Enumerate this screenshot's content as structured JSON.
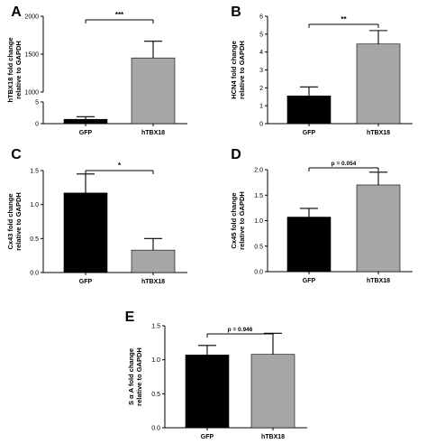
{
  "chart_data": [
    {
      "id": "A",
      "type": "bar",
      "panel_label": "A",
      "ylabel": [
        "hTBX18 fold change",
        "relative to GAPDH"
      ],
      "categories": [
        "GFP",
        "hTBX18"
      ],
      "values": [
        1,
        1450
      ],
      "errors": [
        0.6,
        220
      ],
      "bar_colors": [
        "#000000",
        "#a6a6a6"
      ],
      "axis_break": true,
      "lower_segment": {
        "ylim": [
          0,
          5
        ],
        "ticks": [
          "0",
          "5"
        ]
      },
      "upper_segment": {
        "ylim": [
          1000,
          2000
        ],
        "ticks": [
          "1000",
          "1500",
          "2000"
        ]
      },
      "significance": "***"
    },
    {
      "id": "B",
      "type": "bar",
      "panel_label": "B",
      "ylabel": [
        "HCN4 fold change",
        "relative to GAPDH"
      ],
      "categories": [
        "GFP",
        "hTBX18"
      ],
      "values": [
        1.55,
        4.45
      ],
      "errors": [
        0.5,
        0.75
      ],
      "bar_colors": [
        "#000000",
        "#a6a6a6"
      ],
      "ylim": [
        0,
        6
      ],
      "ticks": [
        "0",
        "1",
        "2",
        "3",
        "4",
        "5",
        "6"
      ],
      "significance": "**"
    },
    {
      "id": "C",
      "type": "bar",
      "panel_label": "C",
      "ylabel": [
        "Cx43 fold change",
        "relative to GAPDH"
      ],
      "categories": [
        "GFP",
        "hTBX18"
      ],
      "values": [
        1.17,
        0.33
      ],
      "errors": [
        0.28,
        0.17
      ],
      "bar_colors": [
        "#000000",
        "#a6a6a6"
      ],
      "ylim": [
        0,
        1.5
      ],
      "ticks": [
        "0.0",
        "0.5",
        "1.0",
        "1.5"
      ],
      "significance": "*"
    },
    {
      "id": "D",
      "type": "bar",
      "panel_label": "D",
      "ylabel": [
        "Cx45 fold change",
        "relative to GAPDH"
      ],
      "categories": [
        "GFP",
        "hTBX18"
      ],
      "values": [
        1.07,
        1.7
      ],
      "errors": [
        0.17,
        0.25
      ],
      "bar_colors": [
        "#000000",
        "#a6a6a6"
      ],
      "ylim": [
        0,
        2.0
      ],
      "ticks": [
        "0.0",
        "0.5",
        "1.0",
        "1.5",
        "2.0"
      ],
      "significance": "p = 0.054"
    },
    {
      "id": "E",
      "type": "bar",
      "panel_label": "E",
      "ylabel": [
        "S α A fold change",
        "relative to GAPDH"
      ],
      "categories": [
        "GFP",
        "hTBX18"
      ],
      "values": [
        1.07,
        1.08
      ],
      "errors": [
        0.14,
        0.31
      ],
      "bar_colors": [
        "#000000",
        "#a6a6a6"
      ],
      "ylim": [
        0,
        1.5
      ],
      "ticks": [
        "0.0",
        "0.5",
        "1.0",
        "1.5"
      ],
      "significance": "p = 0.946"
    }
  ]
}
